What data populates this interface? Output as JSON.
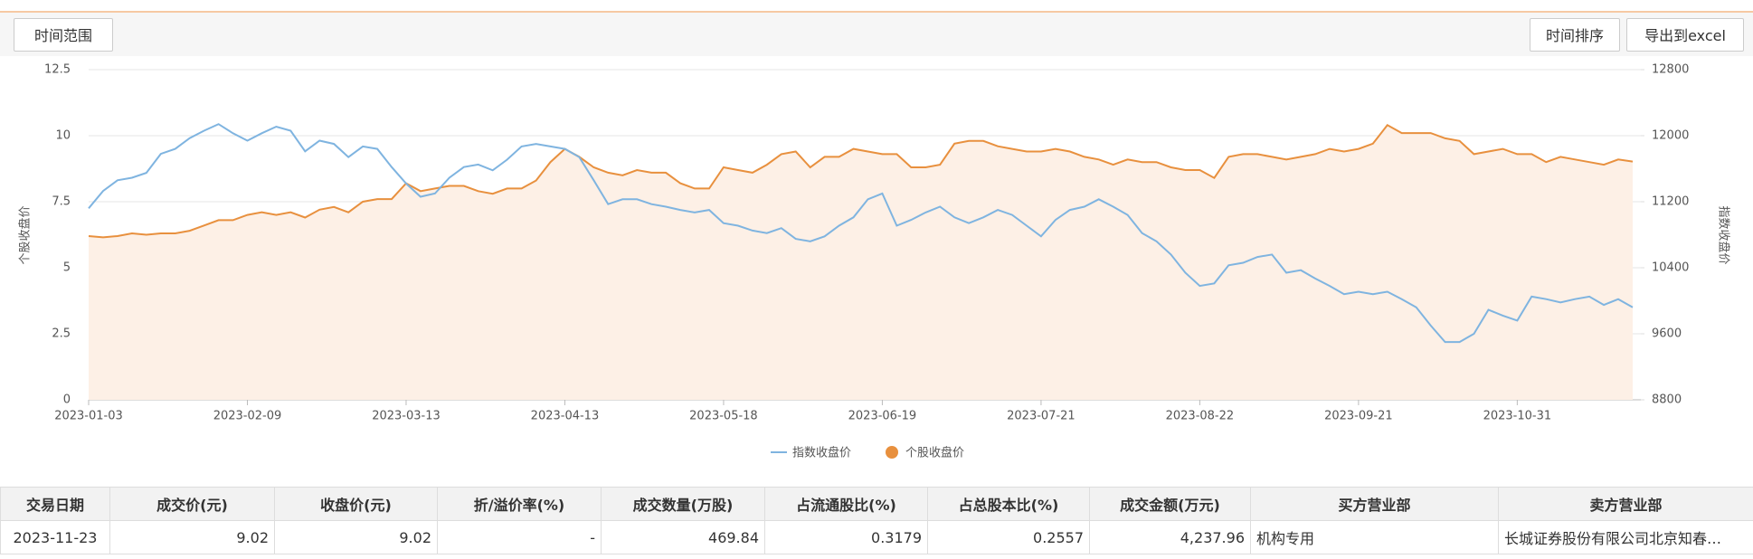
{
  "toolbar": {
    "range": "时间范围",
    "sort": "时间排序",
    "export": "导出到excel"
  },
  "chart_data": {
    "type": "line",
    "ylabel": "个股收盘价",
    "y2label": "指数收盘价",
    "categories": [
      "2023-01-03",
      null,
      null,
      null,
      null,
      null,
      null,
      null,
      null,
      null,
      null,
      "2023-02-09",
      null,
      null,
      null,
      null,
      null,
      null,
      null,
      null,
      null,
      null,
      "2023-03-13",
      null,
      null,
      null,
      null,
      null,
      null,
      null,
      null,
      null,
      null,
      "2023-04-13",
      null,
      null,
      null,
      null,
      null,
      null,
      null,
      null,
      null,
      null,
      "2023-05-18",
      null,
      null,
      null,
      null,
      null,
      null,
      null,
      null,
      null,
      null,
      "2023-06-19",
      null,
      null,
      null,
      null,
      null,
      null,
      null,
      null,
      null,
      null,
      "2023-07-21",
      null,
      null,
      null,
      null,
      null,
      null,
      null,
      null,
      null,
      null,
      "2023-08-22",
      null,
      null,
      null,
      null,
      null,
      null,
      null,
      null,
      null,
      null,
      "2023-09-21",
      null,
      null,
      null,
      null,
      null,
      null,
      null,
      null,
      null,
      null,
      "2023-10-31",
      null,
      null,
      null,
      null,
      null,
      null,
      null,
      null
    ],
    "ylim": [
      0,
      12.5
    ],
    "yticks": [
      0,
      2.5,
      5,
      7.5,
      10,
      12.5
    ],
    "y2lim": [
      8800,
      12800
    ],
    "y2ticks": [
      8800,
      9600,
      10400,
      11200,
      12000,
      12800
    ],
    "grid": true,
    "series": [
      {
        "name": "指数收盘价",
        "color": "#7fb4e0",
        "axis": "y2",
        "values": [
          11120,
          11330,
          11460,
          11490,
          11550,
          11780,
          11840,
          11970,
          12060,
          12140,
          12030,
          11940,
          12030,
          12110,
          12060,
          11810,
          11940,
          11900,
          11740,
          11870,
          11840,
          11620,
          11420,
          11260,
          11300,
          11490,
          11620,
          11650,
          11580,
          11710,
          11870,
          11900,
          11870,
          11840,
          11740,
          11460,
          11170,
          11230,
          11230,
          11170,
          11140,
          11100,
          11070,
          11100,
          10940,
          10910,
          10850,
          10820,
          10880,
          10750,
          10720,
          10780,
          10910,
          11010,
          11230,
          11300,
          10910,
          10980,
          11070,
          11140,
          11010,
          10940,
          11010,
          11100,
          11040,
          10910,
          10780,
          10980,
          11100,
          11140,
          11230,
          11140,
          11040,
          10820,
          10720,
          10560,
          10340,
          10180,
          10210,
          10430,
          10460,
          10530,
          10560,
          10340,
          10370,
          10270,
          10180,
          10080,
          10110,
          10080,
          10110,
          10020,
          9920,
          9700,
          9500,
          9500,
          9600,
          9890,
          9820,
          9760,
          10050,
          10020,
          9980,
          10020,
          10050,
          9950,
          10020,
          9920
        ]
      },
      {
        "name": "个股收盘价",
        "color": "#e8903e",
        "values": [
          6.2,
          6.15,
          6.2,
          6.3,
          6.25,
          6.3,
          6.3,
          6.4,
          6.6,
          6.8,
          6.8,
          7.0,
          7.1,
          7.0,
          7.1,
          6.9,
          7.2,
          7.3,
          7.1,
          7.5,
          7.6,
          7.6,
          8.2,
          7.9,
          8.0,
          8.1,
          8.1,
          7.9,
          7.8,
          8.0,
          8.0,
          8.3,
          9.0,
          9.5,
          9.2,
          8.8,
          8.6,
          8.5,
          8.7,
          8.6,
          8.6,
          8.2,
          8.0,
          8.0,
          8.8,
          8.7,
          8.6,
          8.9,
          9.3,
          9.4,
          8.8,
          9.2,
          9.2,
          9.5,
          9.4,
          9.3,
          9.3,
          8.8,
          8.8,
          8.9,
          9.7,
          9.8,
          9.8,
          9.6,
          9.5,
          9.4,
          9.4,
          9.5,
          9.4,
          9.2,
          9.1,
          8.9,
          9.1,
          9.0,
          9.0,
          8.8,
          8.7,
          8.7,
          8.4,
          9.2,
          9.3,
          9.3,
          9.2,
          9.1,
          9.2,
          9.3,
          9.5,
          9.4,
          9.5,
          9.7,
          10.4,
          10.1,
          10.1,
          10.1,
          9.9,
          9.8,
          9.3,
          9.4,
          9.5,
          9.3,
          9.3,
          9.0,
          9.2,
          9.1,
          9.0,
          8.9,
          9.1,
          9.02
        ]
      }
    ]
  },
  "table": {
    "headers": [
      "交易日期",
      "成交价(元)",
      "收盘价(元)",
      "折/溢价率(%)",
      "成交数量(万股)",
      "占流通股比(%)",
      "占总股本比(%)",
      "成交金额(万元)",
      "买方营业部",
      "卖方营业部"
    ],
    "rows": [
      [
        "2023-11-23",
        "9.02",
        "9.02",
        "-",
        "469.84",
        "0.3179",
        "0.2557",
        "4,237.96",
        "机构专用",
        "长城证券股份有限公司北京知春…"
      ]
    ]
  }
}
